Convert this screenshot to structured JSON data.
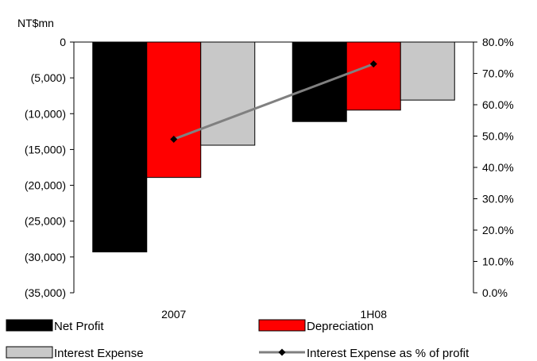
{
  "chart_data": {
    "type": "bar",
    "title": "",
    "unit_label": "NT$mn",
    "categories": [
      "2007",
      "1H08"
    ],
    "series": [
      {
        "name": "Net Profit",
        "values": [
          -29300,
          -11100
        ],
        "color": "#000000"
      },
      {
        "name": "Depreciation",
        "values": [
          -18900,
          -9500
        ],
        "color": "#ff0000"
      },
      {
        "name": "Interest Expense",
        "values": [
          -14400,
          -8100
        ],
        "color": "#c8c8c8"
      }
    ],
    "line_series": {
      "name": "Interest Expense as % of profit",
      "values": [
        0.49,
        0.73
      ],
      "color": "#808080",
      "marker_color": "#000000",
      "axis": "right"
    },
    "y_left": {
      "min": -35000,
      "max": 0,
      "ticks": [
        0,
        -5000,
        -10000,
        -15000,
        -20000,
        -25000,
        -30000,
        -35000
      ],
      "tick_labels": [
        "0",
        "(5,000)",
        "(10,000)",
        "(15,000)",
        "(20,000)",
        "(25,000)",
        "(30,000)",
        "(35,000)"
      ]
    },
    "y_right": {
      "min": 0,
      "max": 0.8,
      "ticks": [
        0.8,
        0.7,
        0.6,
        0.5,
        0.4,
        0.3,
        0.2,
        0.1,
        0.0
      ],
      "tick_labels": [
        "80.0%",
        "70.0%",
        "60.0%",
        "50.0%",
        "40.0%",
        "30.0%",
        "20.0%",
        "10.0%",
        "0.0%"
      ]
    },
    "grid": false,
    "legend_position": "bottom"
  }
}
